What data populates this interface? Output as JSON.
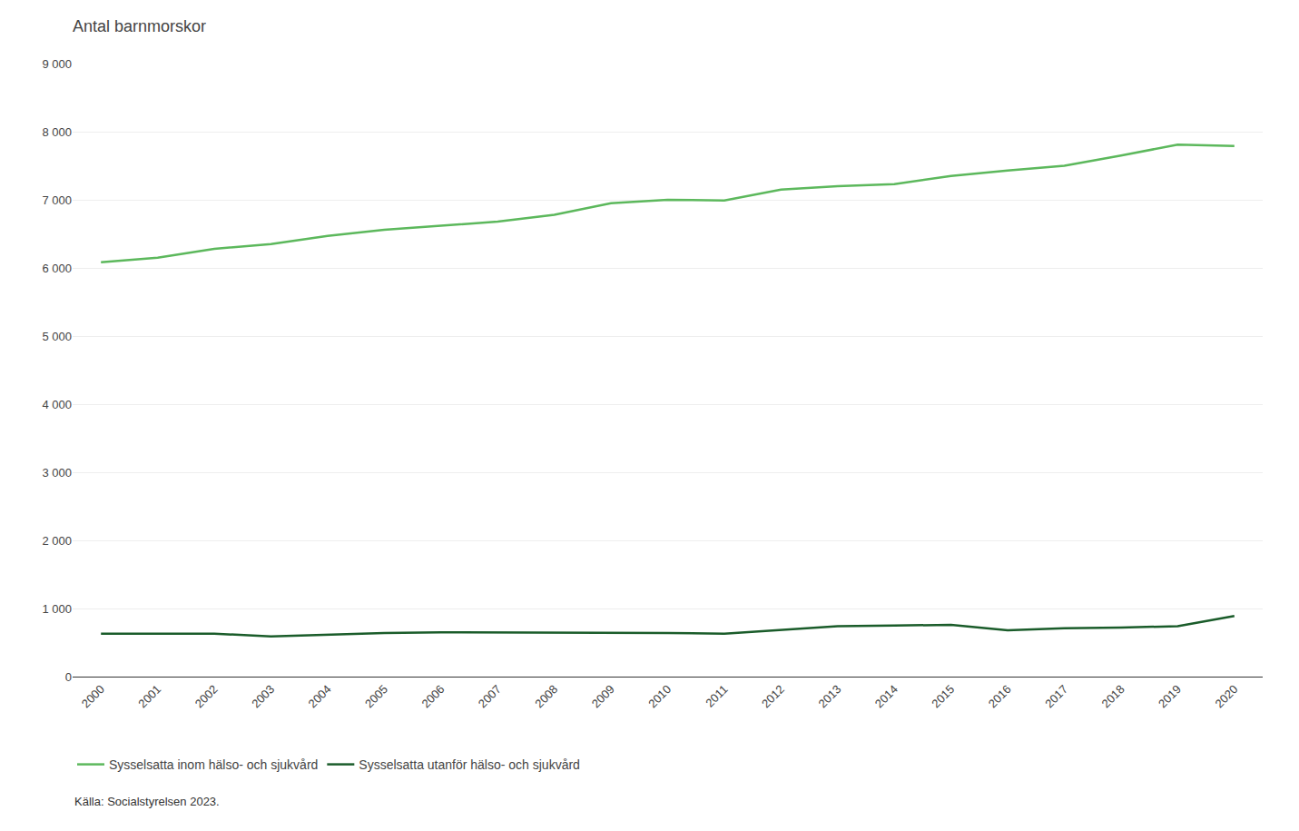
{
  "chart_data": {
    "type": "line",
    "title": "Antal barnmorskor",
    "x": [
      2000,
      2001,
      2002,
      2003,
      2004,
      2005,
      2006,
      2007,
      2008,
      2009,
      2010,
      2011,
      2012,
      2013,
      2014,
      2015,
      2016,
      2017,
      2018,
      2019,
      2020
    ],
    "series": [
      {
        "name": "Sysselsatta inom hälso- och sjukvård",
        "color": "#5cb85c",
        "values": [
          6084,
          6150,
          6280,
          6350,
          6470,
          6560,
          6620,
          6680,
          6780,
          6950,
          7000,
          6990,
          7150,
          7200,
          7230,
          7350,
          7430,
          7500,
          7650,
          7810,
          7791
        ]
      },
      {
        "name": "Sysselsatta utanför hälso- och sjukvård",
        "color": "#1a5c2a",
        "values": [
          631,
          630,
          630,
          590,
          620,
          640,
          650,
          650,
          650,
          650,
          640,
          630,
          680,
          740,
          750,
          760,
          680,
          710,
          720,
          740,
          891
        ]
      }
    ],
    "xlim": [
      1999.5,
      2020.5
    ],
    "xticks": [
      2000,
      2001,
      2002,
      2003,
      2004,
      2005,
      2006,
      2007,
      2008,
      2009,
      2010,
      2011,
      2012,
      2013,
      2014,
      2015,
      2016,
      2017,
      2018,
      2019,
      2020
    ],
    "ylim": [
      0,
      9000
    ],
    "yticks": [
      0,
      {
        "value": 1000,
        "label": "1 000"
      },
      {
        "value": 2000,
        "label": "2 000"
      },
      {
        "value": 3000,
        "label": "3 000"
      },
      {
        "value": 4000,
        "label": "4 000"
      },
      {
        "value": 5000,
        "label": "5 000"
      },
      {
        "value": 6000,
        "label": "6 000"
      },
      {
        "value": 7000,
        "label": "7 000"
      },
      {
        "value": 8000,
        "label": "8 000"
      },
      {
        "value": 9000,
        "label": "9 000"
      }
    ],
    "grid": true,
    "legend": "bottom left",
    "annotations": [
      "Källa: Socialstyrelsen 2023."
    ]
  }
}
